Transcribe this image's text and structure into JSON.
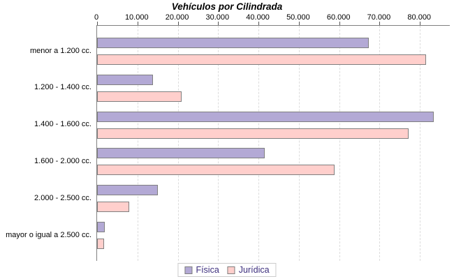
{
  "chart_data": {
    "type": "bar",
    "orientation": "horizontal",
    "title": "Vehículos por Cilindrada",
    "categories": [
      "menor a 1.200 cc.",
      "1.200 - 1.400 cc.",
      "1.400 - 1.600 cc.",
      "1.600 - 2.000 cc.",
      "2.000 - 2.500 cc.",
      "mayor o igual a 2.500 cc."
    ],
    "series": [
      {
        "name": "Física",
        "color": "#b3a9d5",
        "values": [
          67400,
          13800,
          83400,
          41500,
          15100,
          1900
        ]
      },
      {
        "name": "Jurídica",
        "color": "#ffcfcc",
        "values": [
          81600,
          21000,
          77200,
          58800,
          8000,
          1800
        ]
      }
    ],
    "x_axis": {
      "min": 0,
      "max": 87400,
      "tick_values": [
        0,
        10000,
        20000,
        30000,
        40000,
        50000,
        60000,
        70000,
        80000
      ],
      "tick_labels": [
        "0",
        "10.000",
        "20.000",
        "30.000",
        "40.000",
        "50.000",
        "60.000",
        "70.000",
        "80.000"
      ],
      "gridlines": "dashed-vertical"
    },
    "legend": {
      "position": "bottom",
      "entries": [
        "Física",
        "Jurídica"
      ]
    },
    "colors": {
      "background": "#ffffff",
      "text": "#000000",
      "legend_text": "#3c2e7d",
      "legend_border": "#cccccc",
      "bar_border": "#7f7f7f",
      "axis_line": "#808080",
      "gridline": "#dcdcdc"
    }
  }
}
